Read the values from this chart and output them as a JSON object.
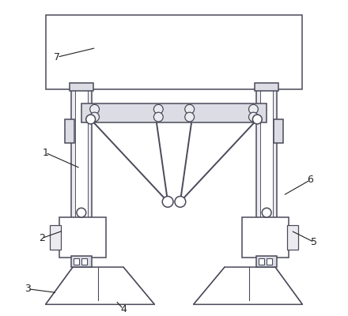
{
  "bg_color": "#ffffff",
  "line_color": "#4a4a5a",
  "fill_light": "#dcdce4",
  "fill_lighter": "#ebebf0",
  "fill_white": "#ffffff",
  "fill_dark": "#b0b0bc",
  "label_color": "#222222",
  "lw": 1.1,
  "fig_w": 4.4,
  "fig_h": 4.0,
  "dpi": 100
}
